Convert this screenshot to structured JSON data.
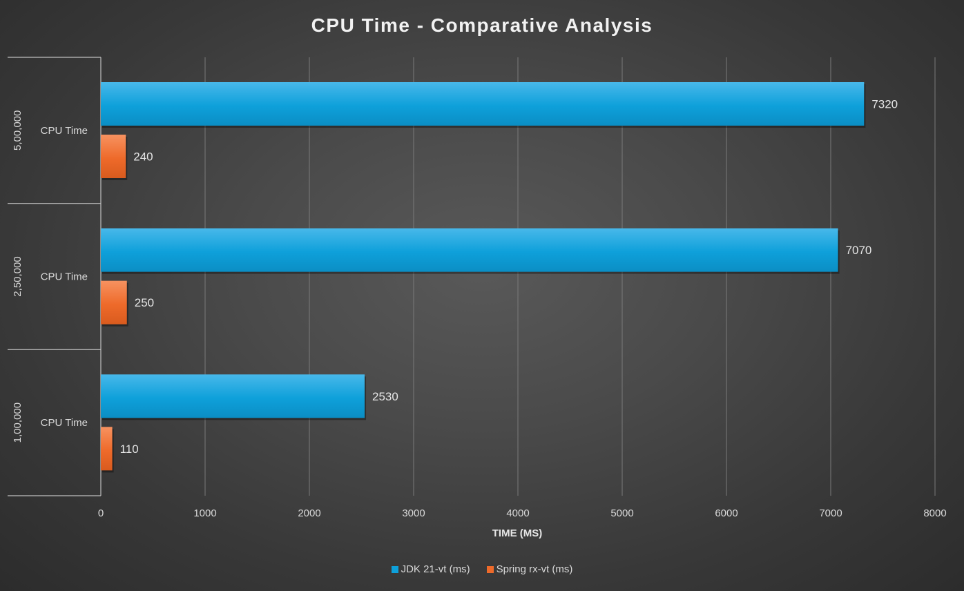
{
  "chart_data": {
    "type": "bar",
    "orientation": "horizontal",
    "title": "CPU Time - Comparative Analysis",
    "xlabel": "TIME (MS)",
    "ylabel": "",
    "xlim": [
      0,
      8000
    ],
    "x_ticks": [
      "0",
      "1000",
      "2000",
      "3000",
      "4000",
      "5000",
      "6000",
      "7000",
      "8000"
    ],
    "x_tick_values": [
      0,
      1000,
      2000,
      3000,
      4000,
      5000,
      6000,
      7000,
      8000
    ],
    "grid": "vertical",
    "legend_position": "bottom",
    "groups": [
      {
        "label": "5,00,000",
        "category": "CPU Time"
      },
      {
        "label": "2,50,000",
        "category": "CPU Time"
      },
      {
        "label": "1,00,000",
        "category": "CPU Time"
      }
    ],
    "series": [
      {
        "name": "JDK 21-vt  (ms)",
        "color": "#0EA0DA",
        "values": [
          7320,
          7070,
          2530
        ],
        "labels": [
          "7320",
          "7070",
          "2530"
        ]
      },
      {
        "name": "Spring rx-vt  (ms)",
        "color": "#EE6A2A",
        "values": [
          240,
          250,
          110
        ],
        "labels": [
          "240",
          "250",
          "110"
        ]
      }
    ]
  }
}
